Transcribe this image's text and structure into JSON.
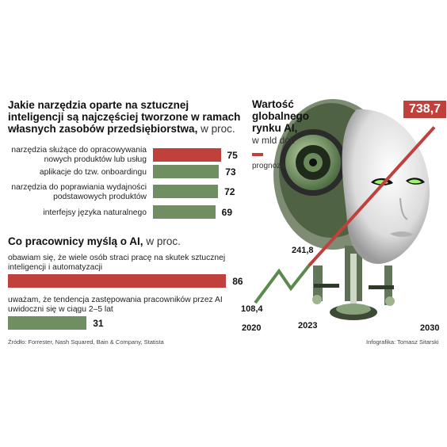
{
  "chart_data": [
    {
      "type": "bar",
      "title": "Jakie narzędzia oparte na sztucznej inteligencji są najczęściej tworzone w ramach własnych zasobów przedsiębiorstwa,",
      "unit": "w proc.",
      "categories": [
        "narzędzia służące do opracowywania nowych produktów lub usług",
        "aplikacje do tzw. onboardingu",
        "narzędzia do poprawiania wydajności podstawowych produktów",
        "interfejsy języka naturalnego"
      ],
      "values": [
        75,
        73,
        72,
        69
      ],
      "value_labels": [
        "75",
        "73",
        "72",
        "69"
      ],
      "xlim": [
        0,
        100
      ]
    },
    {
      "type": "bar",
      "title": "Co pracownicy myślą o AI,",
      "unit": "w proc.",
      "categories": [
        "obawiam się, że wiele osób straci pracę na skutek sztucznej inteligencji i automatyzacji",
        "uważam, że tendencja zastępowania pracowników przez AI uwidoczni się w ciągu 2–5 lat"
      ],
      "values": [
        86,
        31
      ],
      "value_labels": [
        "86",
        "31"
      ],
      "xlim": [
        0,
        100
      ]
    },
    {
      "type": "line",
      "title": "Wartość globalnego rynku AI,",
      "unit": "w mld dol.",
      "x": [
        2020,
        2023,
        2030
      ],
      "y": [
        108.4,
        241.8,
        738.7
      ],
      "x_labels": [
        "2020",
        "2023",
        "2030"
      ],
      "value_labels": [
        "108,4",
        "241,8",
        "738,7"
      ],
      "legend": "prognoza",
      "ylim": [
        0,
        800
      ]
    }
  ],
  "footer": {
    "source": "Źródło: Forrester, Nash Squared, Bain & Company, Statista",
    "credit": "Infografika: Tomasz Sitarski"
  },
  "colors": {
    "red": "#c0413b",
    "green": "#6f8f63",
    "line": "#5b8a4e"
  }
}
